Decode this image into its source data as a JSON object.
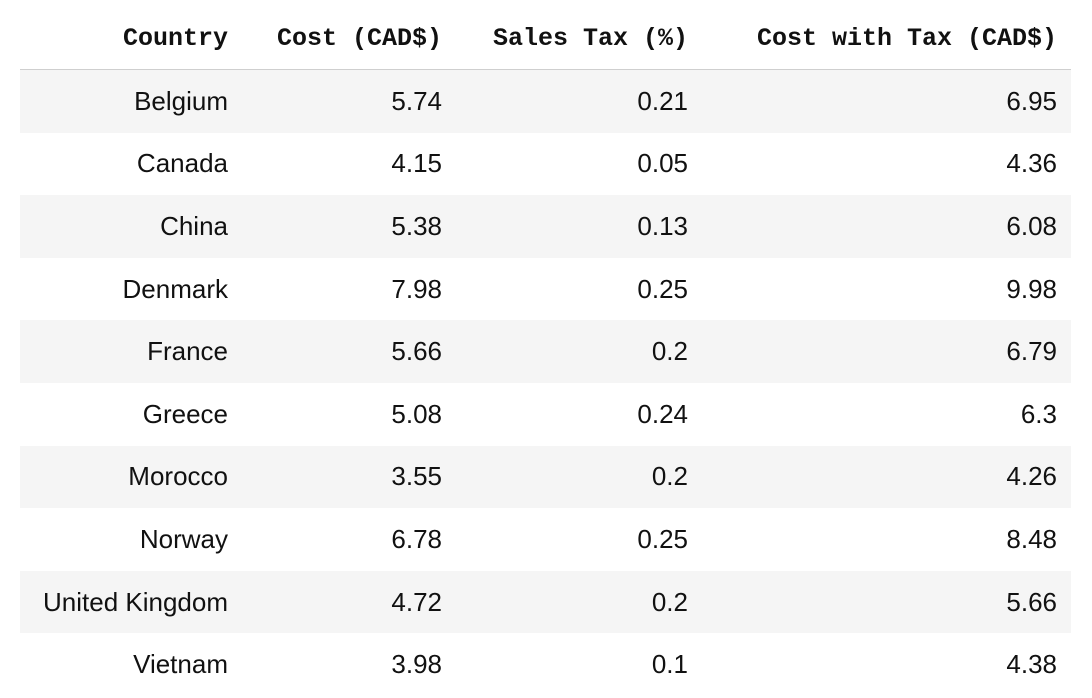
{
  "table": {
    "headers": [
      "Country",
      "Cost (CAD$)",
      "Sales Tax (%)",
      "Cost with Tax (CAD$)"
    ],
    "rows": [
      [
        "Belgium",
        "5.74",
        "0.21",
        "6.95"
      ],
      [
        "Canada",
        "4.15",
        "0.05",
        "4.36"
      ],
      [
        "China",
        "5.38",
        "0.13",
        "6.08"
      ],
      [
        "Denmark",
        "7.98",
        "0.25",
        "9.98"
      ],
      [
        "France",
        "5.66",
        "0.2",
        "6.79"
      ],
      [
        "Greece",
        "5.08",
        "0.24",
        "6.3"
      ],
      [
        "Morocco",
        "3.55",
        "0.2",
        "4.26"
      ],
      [
        "Norway",
        "6.78",
        "0.25",
        "8.48"
      ],
      [
        "United Kingdom",
        "4.72",
        "0.2",
        "5.66"
      ],
      [
        "Vietnam",
        "3.98",
        "0.1",
        "4.38"
      ]
    ]
  }
}
